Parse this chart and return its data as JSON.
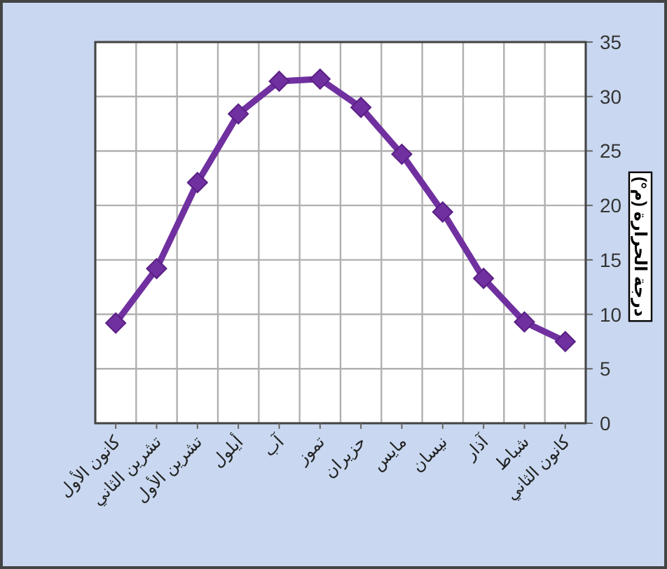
{
  "chart_data": {
    "type": "line",
    "categories": [
      "كانون الأول",
      "تشرين الثاني",
      "تشرين الأول",
      "أيلول",
      "آب",
      "تموز",
      "حزيران",
      "مايس",
      "نيسان",
      "آذار",
      "شباط",
      "كانون الثاني"
    ],
    "series": [
      {
        "color": "#7030a0",
        "values": [
          9.2,
          14.2,
          22.1,
          28.4,
          31.4,
          31.6,
          29.0,
          24.7,
          19.4,
          13.3,
          9.3,
          7.5
        ]
      }
    ],
    "ylabel": "درجة الحرارة (م°)",
    "ylim": [
      0,
      35
    ],
    "yticks": [
      0,
      5,
      10,
      15,
      20,
      25,
      30,
      35
    ],
    "grid": true,
    "marker": "diamond",
    "line_style": "solid"
  }
}
